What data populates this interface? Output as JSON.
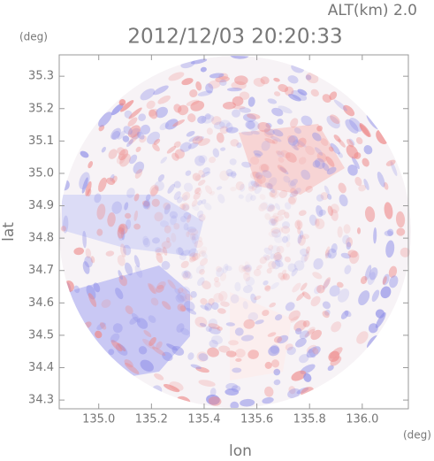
{
  "chart_data": {
    "type": "radar-map",
    "title": "2012/12/03 20:20:33",
    "subtitle": "ALT(km)  2.0",
    "x_label": "lon",
    "y_label": "lat",
    "x_unit": "(deg)",
    "y_unit": "(deg)",
    "xlim": [
      134.85,
      136.175
    ],
    "ylim": [
      34.273,
      35.366
    ],
    "xticks": [
      {
        "value": 135.0,
        "label": "135.0"
      },
      135.2,
      135.4,
      135.6,
      135.8,
      {
        "value": 136.0,
        "label": "136.0"
      }
    ],
    "yticks": [
      34.3,
      34.4,
      34.5,
      34.6,
      34.7,
      34.8,
      34.9,
      {
        "value": 35.0,
        "label": "35.0"
      },
      35.1,
      35.2,
      35.3
    ]
  }
}
